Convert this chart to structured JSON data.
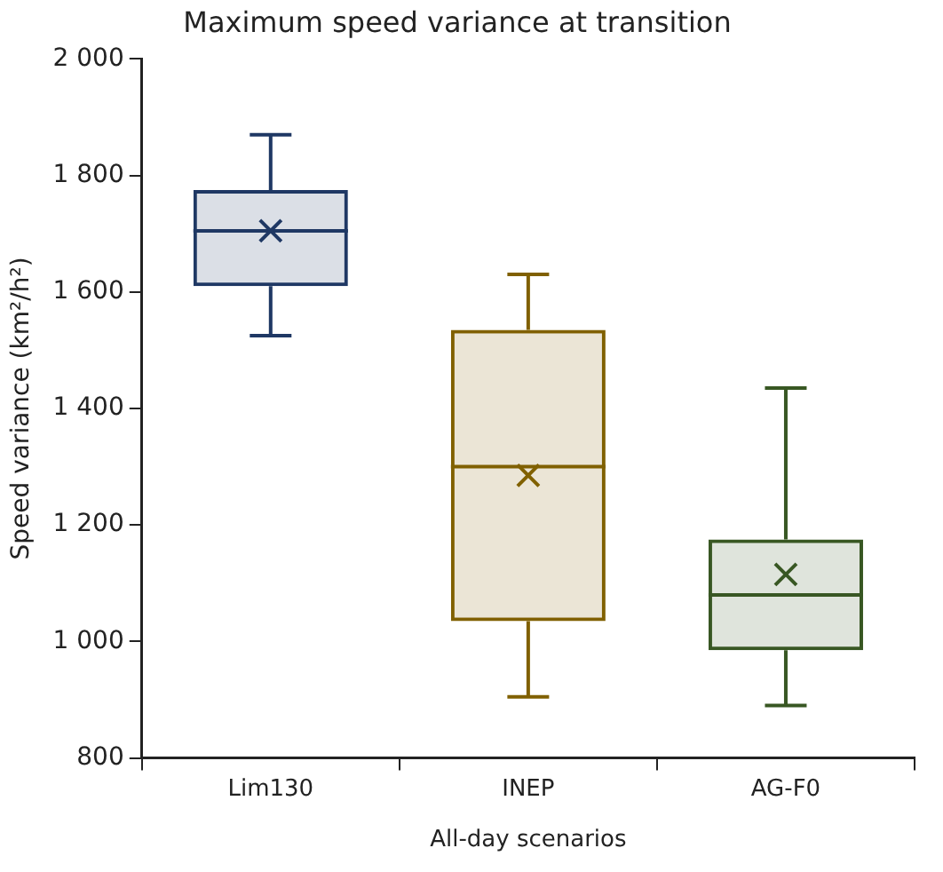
{
  "chart_data": {
    "type": "box",
    "title": "Maximum speed variance at transition",
    "xlabel": "All-day scenarios",
    "ylabel": "Speed variance (km²/h²)",
    "categories": [
      "Lim130",
      "INEP",
      "AG-F0"
    ],
    "colors": [
      "#1f3864",
      "#806000",
      "#385723"
    ],
    "boxes": [
      {
        "low": 1525,
        "q1": 1610,
        "median": 1705,
        "q3": 1775,
        "high": 1870,
        "mean": 1705
      },
      {
        "low": 905,
        "q1": 1035,
        "median": 1300,
        "q3": 1535,
        "high": 1630,
        "mean": 1285
      },
      {
        "low": 890,
        "q1": 985,
        "median": 1080,
        "q3": 1175,
        "high": 1435,
        "mean": 1115
      }
    ],
    "ylim": [
      800,
      2000
    ],
    "yticks": [
      {
        "value": 800,
        "label": "800"
      },
      {
        "value": 1000,
        "label": "1 000"
      },
      {
        "value": 1200,
        "label": "1 200"
      },
      {
        "value": 1400,
        "label": "1 400"
      },
      {
        "value": 1600,
        "label": "1 600"
      },
      {
        "value": 1800,
        "label": "1 800"
      },
      {
        "value": 2000,
        "label": "2 000"
      }
    ],
    "grid": false,
    "legend": false,
    "marker": "cross"
  }
}
